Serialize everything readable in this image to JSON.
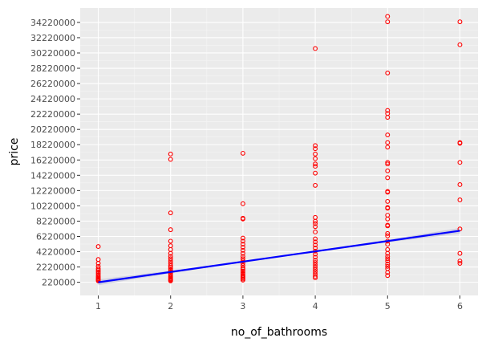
{
  "chart_data": {
    "type": "scatter",
    "title": "",
    "xlabel": "no_of_bathrooms",
    "ylabel": "price",
    "x_ticks": [
      1,
      2,
      3,
      4,
      5,
      6
    ],
    "y_ticks": [
      220000,
      2220000,
      4220000,
      6220000,
      8220000,
      10220000,
      12220000,
      14220000,
      16220000,
      18220000,
      20220000,
      22220000,
      24220000,
      26220000,
      28220000,
      30220000,
      32220000,
      34220000
    ],
    "xlim": [
      0.75,
      6.25
    ],
    "ylim": [
      -1500000,
      36100000
    ],
    "grid": true,
    "colors": {
      "panel": "#ebebeb",
      "grid_major": "#ffffff",
      "grid_minor": "#f5f5f5",
      "points": "#ff0000",
      "trend_line": "#0000ff",
      "confidence_band": "#bdbdd8"
    },
    "points": [
      {
        "x": 1,
        "y": [
          4900000,
          3200000,
          2700000,
          2300000,
          2000000,
          1800000,
          1600000,
          1400000,
          1200000,
          1000000,
          850000,
          700000,
          600000,
          500000,
          400000
        ]
      },
      {
        "x": 2,
        "y": [
          17000000,
          16300000,
          9300000,
          7100000,
          5600000,
          5000000,
          4500000,
          4000000,
          3600000,
          3300000,
          3000000,
          2700000,
          2400000,
          2200000,
          2000000,
          1800000,
          1600000,
          1400000,
          1200000,
          1000000,
          850000,
          700000,
          600000,
          500000,
          400000
        ]
      },
      {
        "x": 3,
        "y": [
          17100000,
          10500000,
          8600000,
          8500000,
          6000000,
          5600000,
          5200000,
          4800000,
          4400000,
          4000000,
          3600000,
          3300000,
          3000000,
          2700000,
          2400000,
          2100000,
          1900000,
          1700000,
          1500000,
          1300000,
          1100000,
          950000,
          800000,
          650000,
          500000
        ]
      },
      {
        "x": 4,
        "y": [
          30800000,
          18100000,
          17700000,
          17000000,
          16400000,
          15700000,
          15400000,
          14500000,
          12900000,
          8700000,
          8200000,
          7900000,
          7500000,
          6800000,
          5900000,
          5500000,
          5100000,
          4700000,
          4300000,
          3900000,
          3500000,
          3100000,
          2800000,
          2500000,
          2200000,
          1900000,
          1600000,
          1300000,
          1000000,
          800000
        ]
      },
      {
        "x": 5,
        "y": [
          35000000,
          34300000,
          27600000,
          22700000,
          22300000,
          21800000,
          19500000,
          18500000,
          17900000,
          15900000,
          15700000,
          14800000,
          13900000,
          12100000,
          12000000,
          10800000,
          10000000,
          9900000,
          9000000,
          8500000,
          7700000,
          7600000,
          6600000,
          6300000,
          5600000,
          5200000,
          4500000,
          4000000,
          3600000,
          3300000,
          3000000,
          2600000,
          2300000,
          2000000,
          1500000,
          1100000
        ]
      },
      {
        "x": 6,
        "y": [
          34300000,
          31300000,
          18500000,
          18400000,
          15900000,
          13000000,
          11000000,
          7200000,
          4000000,
          3000000,
          2700000
        ]
      }
    ],
    "trend_line": {
      "x": [
        1,
        6
      ],
      "y": [
        220000,
        6960000
      ]
    }
  }
}
